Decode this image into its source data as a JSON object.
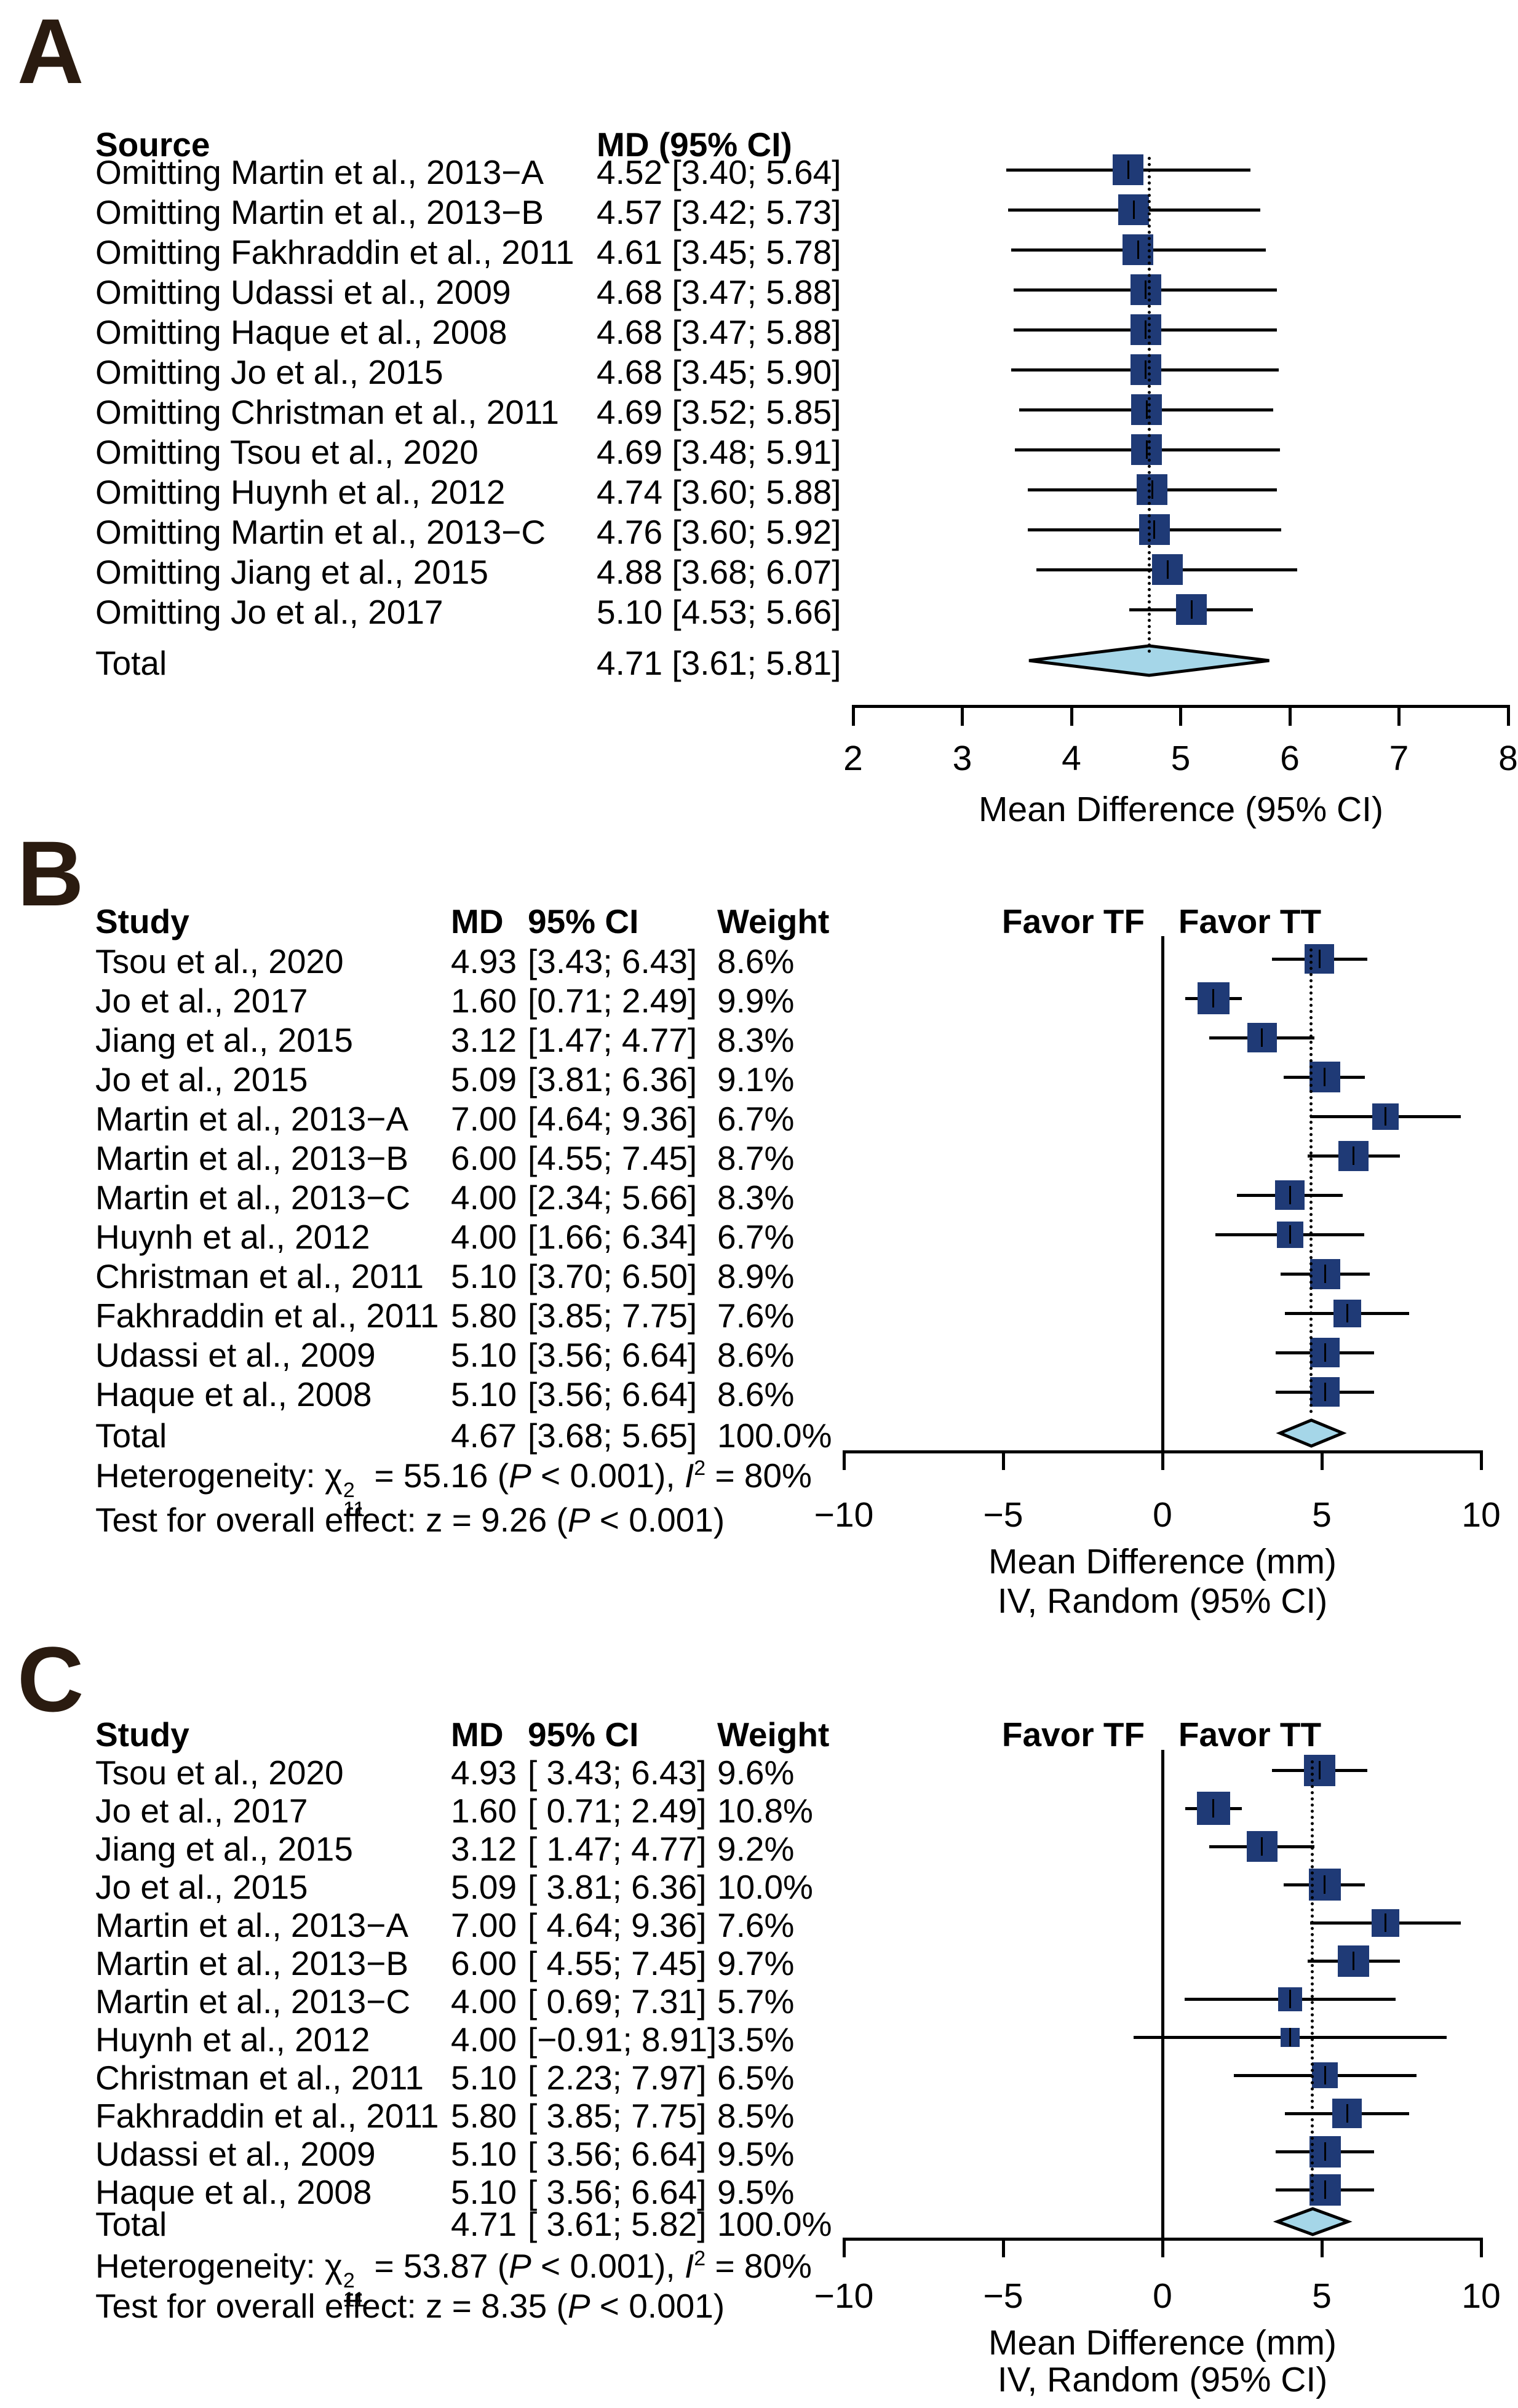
{
  "colors": {
    "effect_square": "#1f3a76",
    "total_diamond": "#a5d6e8",
    "line": "#000000",
    "panel_letter": "#2a1b10"
  },
  "chart_data": [
    {
      "type": "forest",
      "panel_label": "A",
      "columns": {
        "source": "Source",
        "md_ci": "MD (95% CI)"
      },
      "studies": [
        {
          "label": "Omitting Martin et al., 2013−A",
          "text": "4.52 [3.40; 5.64]",
          "md": 4.52,
          "lo": 3.4,
          "hi": 5.64
        },
        {
          "label": "Omitting Martin et al., 2013−B",
          "text": "4.57 [3.42; 5.73]",
          "md": 4.57,
          "lo": 3.42,
          "hi": 5.73
        },
        {
          "label": "Omitting Fakhraddin et al., 2011",
          "text": "4.61 [3.45; 5.78]",
          "md": 4.61,
          "lo": 3.45,
          "hi": 5.78
        },
        {
          "label": "Omitting Udassi et al., 2009",
          "text": "4.68 [3.47; 5.88]",
          "md": 4.68,
          "lo": 3.47,
          "hi": 5.88
        },
        {
          "label": "Omitting Haque et al., 2008",
          "text": "4.68 [3.47; 5.88]",
          "md": 4.68,
          "lo": 3.47,
          "hi": 5.88
        },
        {
          "label": "Omitting Jo et al., 2015",
          "text": "4.68 [3.45; 5.90]",
          "md": 4.68,
          "lo": 3.45,
          "hi": 5.9
        },
        {
          "label": "Omitting Christman et al., 2011",
          "text": "4.69 [3.52; 5.85]",
          "md": 4.69,
          "lo": 3.52,
          "hi": 5.85
        },
        {
          "label": "Omitting Tsou et al., 2020",
          "text": "4.69 [3.48; 5.91]",
          "md": 4.69,
          "lo": 3.48,
          "hi": 5.91
        },
        {
          "label": "Omitting Huynh et al., 2012",
          "text": "4.74 [3.60; 5.88]",
          "md": 4.74,
          "lo": 3.6,
          "hi": 5.88
        },
        {
          "label": "Omitting Martin et al., 2013−C",
          "text": "4.76 [3.60; 5.92]",
          "md": 4.76,
          "lo": 3.6,
          "hi": 5.92
        },
        {
          "label": "Omitting Jiang et al., 2015",
          "text": "4.88 [3.68; 6.07]",
          "md": 4.88,
          "lo": 3.68,
          "hi": 6.07
        },
        {
          "label": "Omitting Jo et al., 2017",
          "text": "5.10 [4.53; 5.66]",
          "md": 5.1,
          "lo": 4.53,
          "hi": 5.66
        }
      ],
      "total": {
        "label": "Total",
        "text": "4.71 [3.61; 5.81]",
        "md": 4.71,
        "lo": 3.61,
        "hi": 5.81
      },
      "ref_value": 4.71,
      "axis": {
        "min": 2,
        "max": 8,
        "tick_values": [
          2,
          3,
          4,
          5,
          6,
          7,
          8
        ],
        "tick_labels": [
          "2",
          "3",
          "4",
          "5",
          "6",
          "7",
          "8"
        ],
        "label_lines": [
          "Mean Difference (95% CI)"
        ]
      }
    },
    {
      "type": "forest",
      "panel_label": "B",
      "columns": {
        "study": "Study",
        "md": "MD",
        "ci": "95% CI",
        "weight": "Weight"
      },
      "favor_left": "Favor TF",
      "favor_right": "Favor TT",
      "studies": [
        {
          "label": "Tsou et al., 2020",
          "md_text": "4.93",
          "ci_text": "[3.43; 6.43]",
          "weight_text": "8.6%",
          "md": 4.93,
          "lo": 3.43,
          "hi": 6.43,
          "weight": 8.6
        },
        {
          "label": "Jo et al., 2017",
          "md_text": "1.60",
          "ci_text": "[0.71; 2.49]",
          "weight_text": "9.9%",
          "md": 1.6,
          "lo": 0.71,
          "hi": 2.49,
          "weight": 9.9
        },
        {
          "label": "Jiang et al., 2015",
          "md_text": "3.12",
          "ci_text": "[1.47; 4.77]",
          "weight_text": "8.3%",
          "md": 3.12,
          "lo": 1.47,
          "hi": 4.77,
          "weight": 8.3
        },
        {
          "label": "Jo et al., 2015",
          "md_text": "5.09",
          "ci_text": "[3.81; 6.36]",
          "weight_text": "9.1%",
          "md": 5.09,
          "lo": 3.81,
          "hi": 6.36,
          "weight": 9.1
        },
        {
          "label": "Martin et al., 2013−A",
          "md_text": "7.00",
          "ci_text": "[4.64; 9.36]",
          "weight_text": "6.7%",
          "md": 7.0,
          "lo": 4.64,
          "hi": 9.36,
          "weight": 6.7
        },
        {
          "label": "Martin et al., 2013−B",
          "md_text": "6.00",
          "ci_text": "[4.55; 7.45]",
          "weight_text": "8.7%",
          "md": 6.0,
          "lo": 4.55,
          "hi": 7.45,
          "weight": 8.7
        },
        {
          "label": "Martin et al., 2013−C",
          "md_text": "4.00",
          "ci_text": "[2.34; 5.66]",
          "weight_text": "8.3%",
          "md": 4.0,
          "lo": 2.34,
          "hi": 5.66,
          "weight": 8.3
        },
        {
          "label": "Huynh et al., 2012",
          "md_text": "4.00",
          "ci_text": "[1.66; 6.34]",
          "weight_text": "6.7%",
          "md": 4.0,
          "lo": 1.66,
          "hi": 6.34,
          "weight": 6.7
        },
        {
          "label": "Christman et al., 2011",
          "md_text": "5.10",
          "ci_text": "[3.70; 6.50]",
          "weight_text": "8.9%",
          "md": 5.1,
          "lo": 3.7,
          "hi": 6.5,
          "weight": 8.9
        },
        {
          "label": "Fakhraddin et al., 2011",
          "md_text": "5.80",
          "ci_text": "[3.85; 7.75]",
          "weight_text": "7.6%",
          "md": 5.8,
          "lo": 3.85,
          "hi": 7.75,
          "weight": 7.6
        },
        {
          "label": "Udassi et al., 2009",
          "md_text": "5.10",
          "ci_text": "[3.56; 6.64]",
          "weight_text": "8.6%",
          "md": 5.1,
          "lo": 3.56,
          "hi": 6.64,
          "weight": 8.6
        },
        {
          "label": "Haque et al., 2008",
          "md_text": "5.10",
          "ci_text": "[3.56; 6.64]",
          "weight_text": "8.6%",
          "md": 5.1,
          "lo": 3.56,
          "hi": 6.64,
          "weight": 8.6
        }
      ],
      "total": {
        "label": "Total",
        "md_text": "4.67",
        "ci_text": "[3.68; 5.65]",
        "weight_text": "100.0%",
        "md": 4.67,
        "lo": 3.68,
        "hi": 5.65
      },
      "heterogeneity": [
        {
          "t": "Heterogeneity: "
        },
        {
          "t": "χ",
          "stack": {
            "sup": "2",
            "sub": "11"
          }
        },
        {
          "t": " = 55.16 ("
        },
        {
          "t": "P",
          "i": true
        },
        {
          "t": " < 0.001), "
        },
        {
          "t": "I",
          "i": true,
          "sup": "2"
        },
        {
          "t": " = 80%"
        }
      ],
      "overall_effect": [
        {
          "t": "Test for overall effect: z = 9.26 ("
        },
        {
          "t": "P",
          "i": true
        },
        {
          "t": " < 0.001)"
        }
      ],
      "ref_value": 4.67,
      "zero_value": 0,
      "axis": {
        "min": -10,
        "max": 10,
        "tick_values": [
          -10,
          -5,
          0,
          5,
          10
        ],
        "tick_labels": [
          "−10",
          "−5",
          "0",
          "5",
          "10"
        ],
        "label_lines": [
          "Mean Difference (mm)",
          "IV, Random (95% CI)"
        ]
      }
    },
    {
      "type": "forest",
      "panel_label": "C",
      "columns": {
        "study": "Study",
        "md": "MD",
        "ci": "95% CI",
        "weight": "Weight"
      },
      "favor_left": "Favor TF",
      "favor_right": "Favor TT",
      "studies": [
        {
          "label": "Tsou et al., 2020",
          "md_text": "4.93",
          "ci_text": "[ 3.43; 6.43]",
          "weight_text": "9.6%",
          "md": 4.93,
          "lo": 3.43,
          "hi": 6.43,
          "weight": 9.6
        },
        {
          "label": "Jo et al., 2017",
          "md_text": "1.60",
          "ci_text": "[ 0.71; 2.49]",
          "weight_text": "10.8%",
          "md": 1.6,
          "lo": 0.71,
          "hi": 2.49,
          "weight": 10.8
        },
        {
          "label": "Jiang et al., 2015",
          "md_text": "3.12",
          "ci_text": "[ 1.47; 4.77]",
          "weight_text": "9.2%",
          "md": 3.12,
          "lo": 1.47,
          "hi": 4.77,
          "weight": 9.2
        },
        {
          "label": "Jo et al., 2015",
          "md_text": "5.09",
          "ci_text": "[ 3.81; 6.36]",
          "weight_text": "10.0%",
          "md": 5.09,
          "lo": 3.81,
          "hi": 6.36,
          "weight": 10.0
        },
        {
          "label": "Martin et al., 2013−A",
          "md_text": "7.00",
          "ci_text": "[ 4.64; 9.36]",
          "weight_text": "7.6%",
          "md": 7.0,
          "lo": 4.64,
          "hi": 9.36,
          "weight": 7.6
        },
        {
          "label": "Martin et al., 2013−B",
          "md_text": "6.00",
          "ci_text": "[ 4.55; 7.45]",
          "weight_text": "9.7%",
          "md": 6.0,
          "lo": 4.55,
          "hi": 7.45,
          "weight": 9.7
        },
        {
          "label": "Martin et al., 2013−C",
          "md_text": "4.00",
          "ci_text": "[ 0.69; 7.31]",
          "weight_text": "5.7%",
          "md": 4.0,
          "lo": 0.69,
          "hi": 7.31,
          "weight": 5.7
        },
        {
          "label": "Huynh et al., 2012",
          "md_text": "4.00",
          "ci_text": "[−0.91; 8.91]",
          "weight_text": "3.5%",
          "md": 4.0,
          "lo": -0.91,
          "hi": 8.91,
          "weight": 3.5
        },
        {
          "label": "Christman et al., 2011",
          "md_text": "5.10",
          "ci_text": "[ 2.23; 7.97]",
          "weight_text": "6.5%",
          "md": 5.1,
          "lo": 2.23,
          "hi": 7.97,
          "weight": 6.5
        },
        {
          "label": "Fakhraddin et al., 2011",
          "md_text": "5.80",
          "ci_text": "[ 3.85; 7.75]",
          "weight_text": "8.5%",
          "md": 5.8,
          "lo": 3.85,
          "hi": 7.75,
          "weight": 8.5
        },
        {
          "label": "Udassi et al., 2009",
          "md_text": "5.10",
          "ci_text": "[ 3.56; 6.64]",
          "weight_text": "9.5%",
          "md": 5.1,
          "lo": 3.56,
          "hi": 6.64,
          "weight": 9.5
        },
        {
          "label": "Haque et al., 2008",
          "md_text": "5.10",
          "ci_text": "[ 3.56; 6.64]",
          "weight_text": "9.5%",
          "md": 5.1,
          "lo": 3.56,
          "hi": 6.64,
          "weight": 9.5
        }
      ],
      "total": {
        "label": "Total",
        "md_text": "4.71",
        "ci_text": "[ 3.61; 5.82]",
        "weight_text": "100.0%",
        "md": 4.71,
        "lo": 3.61,
        "hi": 5.82
      },
      "heterogeneity": [
        {
          "t": "Heterogeneity: "
        },
        {
          "t": "χ",
          "stack": {
            "sup": "2",
            "sub": "11"
          }
        },
        {
          "t": " = 53.87 ("
        },
        {
          "t": "P",
          "i": true
        },
        {
          "t": " < 0.001), "
        },
        {
          "t": "I",
          "i": true,
          "sup": "2"
        },
        {
          "t": " = 80%"
        }
      ],
      "overall_effect": [
        {
          "t": "Test for overall effect: z = 8.35 ("
        },
        {
          "t": "P",
          "i": true
        },
        {
          "t": " < 0.001)"
        }
      ],
      "ref_value": 4.71,
      "zero_value": 0,
      "axis": {
        "min": -10,
        "max": 10,
        "tick_values": [
          -10,
          -5,
          0,
          5,
          10
        ],
        "tick_labels": [
          "−10",
          "−5",
          "0",
          "5",
          "10"
        ],
        "label_lines": [
          "Mean Difference (mm)",
          "IV, Random (95% CI)"
        ]
      }
    }
  ]
}
